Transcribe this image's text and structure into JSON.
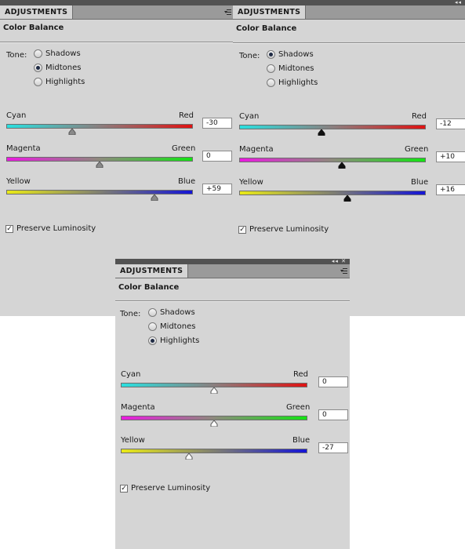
{
  "panels": [
    {
      "tab": "ADJUSTMENTS",
      "title": "Color Balance",
      "tone_label": "Tone:",
      "tones": [
        {
          "label": "Shadows",
          "selected": false
        },
        {
          "label": "Midtones",
          "selected": true
        },
        {
          "label": "Highlights",
          "selected": false
        }
      ],
      "sliders": [
        {
          "left": "Cyan",
          "right": "Red",
          "value": "-30",
          "level": -30
        },
        {
          "left": "Magenta",
          "right": "Green",
          "value": "0",
          "level": 0
        },
        {
          "left": "Yellow",
          "right": "Blue",
          "value": "+59",
          "level": 59
        }
      ],
      "preserve_luminosity": {
        "label": "Preserve Luminosity",
        "checked": true
      },
      "thumb_style": "gray"
    },
    {
      "tab": "ADJUSTMENTS",
      "title": "Color Balance",
      "tone_label": "Tone:",
      "tones": [
        {
          "label": "Shadows",
          "selected": true
        },
        {
          "label": "Midtones",
          "selected": false
        },
        {
          "label": "Highlights",
          "selected": false
        }
      ],
      "sliders": [
        {
          "left": "Cyan",
          "right": "Red",
          "value": "-12",
          "level": -12
        },
        {
          "left": "Magenta",
          "right": "Green",
          "value": "+10",
          "level": 10
        },
        {
          "left": "Yellow",
          "right": "Blue",
          "value": "+16",
          "level": 16
        }
      ],
      "preserve_luminosity": {
        "label": "Preserve Luminosity",
        "checked": true
      },
      "thumb_style": "black"
    },
    {
      "tab": "ADJUSTMENTS",
      "title": "Color Balance",
      "tone_label": "Tone:",
      "tones": [
        {
          "label": "Shadows",
          "selected": false
        },
        {
          "label": "Midtones",
          "selected": false
        },
        {
          "label": "Highlights",
          "selected": true
        }
      ],
      "sliders": [
        {
          "left": "Cyan",
          "right": "Red",
          "value": "0",
          "level": 0
        },
        {
          "left": "Magenta",
          "right": "Green",
          "value": "0",
          "level": 0
        },
        {
          "left": "Yellow",
          "right": "Blue",
          "value": "-27",
          "level": -27
        }
      ],
      "preserve_luminosity": {
        "label": "Preserve Luminosity",
        "checked": true
      },
      "thumb_style": "white"
    }
  ],
  "slider_range": [
    -100,
    100
  ],
  "icons": {
    "collapse": "double-chevron-left-icon",
    "close": "close-icon",
    "panel_menu": "panel-menu-icon",
    "thumb": "slider-thumb-icon"
  }
}
